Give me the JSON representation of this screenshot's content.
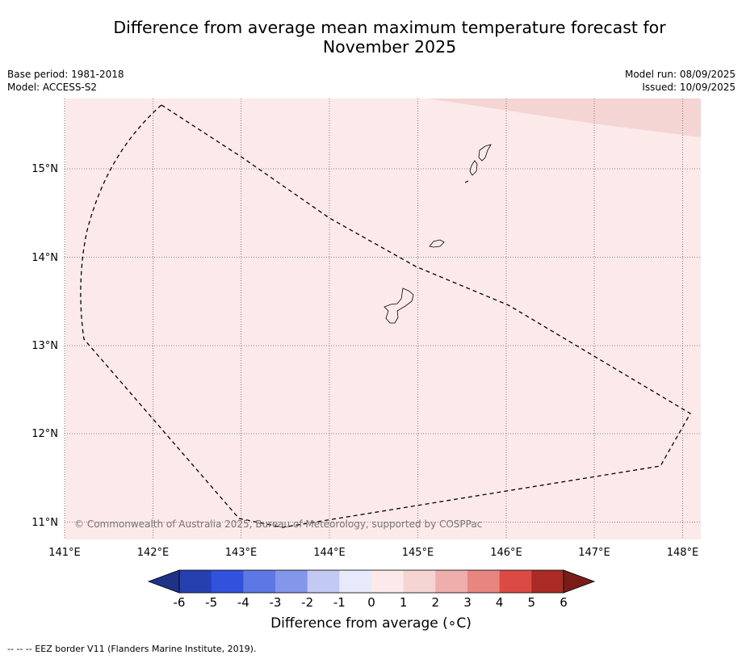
{
  "title_line1": "Difference from average mean maximum temperature forecast for",
  "title_line2": "November 2025",
  "meta_left": {
    "base_period": "Base period: 1981-2018",
    "model": "Model: ACCESS-S2"
  },
  "meta_right": {
    "model_run": "Model run: 08/09/2025",
    "issued": "Issued: 10/09/2025"
  },
  "map": {
    "lon_labels": [
      "141°E",
      "142°E",
      "143°E",
      "144°E",
      "145°E",
      "146°E",
      "147°E",
      "148°E"
    ],
    "lat_labels": [
      "15°N",
      "14°N",
      "13°N",
      "12°N",
      "11°N"
    ],
    "background_color": "#fbeae9",
    "warm_band_color": "#f4d5d4",
    "copyright": "© Commonwealth of Australia 2025, Bureau of Meteorology, supported by COSPPac"
  },
  "colorbar": {
    "ticks": [
      "-6",
      "-5",
      "-4",
      "-3",
      "-2",
      "-1",
      "0",
      "1",
      "2",
      "3",
      "4",
      "5",
      "6"
    ],
    "colors": [
      "#2640b0",
      "#3251dc",
      "#5d77e4",
      "#8496ea",
      "#c2c9f3",
      "#e6eafb",
      "#fbeae9",
      "#f4d5d4",
      "#edaeac",
      "#e78581",
      "#db4a43",
      "#ab2a25"
    ],
    "extend_low_color": "#1e3385",
    "extend_high_color": "#7b1b18",
    "label": "Difference from average (∘C)"
  },
  "legend_note": "-- -- -- EEZ border V11 (Flanders Marine Institute, 2019)."
}
